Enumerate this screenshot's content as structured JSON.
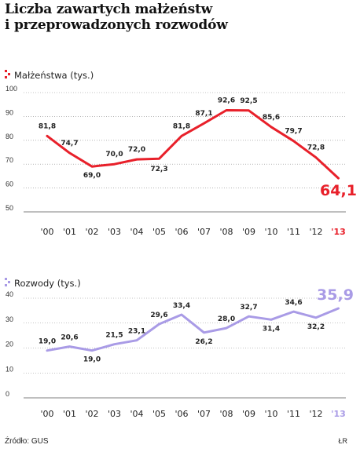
{
  "title_line1": "Liczba zawartych małżeństw",
  "title_line2": "i przeprowadzonych rozwodów",
  "source": "Źródło: GUS",
  "credit": "ŁR",
  "chart_data": [
    {
      "type": "line",
      "ylabel": "Małżeństwa (tys.)",
      "color": "#e8202a",
      "ylim": [
        50,
        100
      ],
      "yticks": [
        50,
        60,
        70,
        80,
        90,
        100
      ],
      "categories": [
        "'00",
        "'01",
        "'02",
        "'03",
        "'04",
        "'05",
        "'06",
        "'07",
        "'08",
        "'09",
        "'10",
        "'11",
        "'12",
        "'13"
      ],
      "values": [
        81.8,
        74.7,
        69.0,
        70.0,
        72.0,
        72.3,
        81.8,
        87.1,
        92.6,
        92.5,
        85.6,
        79.7,
        72.8,
        64.1
      ],
      "labels": [
        "81,8",
        "74,7",
        "69,0",
        "70,0",
        "72,0",
        "72,3",
        "81,8",
        "87,1",
        "92,6",
        "92,5",
        "85,6",
        "79,7",
        "72,8",
        "64,1"
      ],
      "grid": true
    },
    {
      "type": "line",
      "ylabel": "Rozwody (tys.)",
      "color": "#a99be6",
      "ylim": [
        0,
        40
      ],
      "yticks": [
        0,
        10,
        20,
        30,
        40
      ],
      "categories": [
        "'00",
        "'01",
        "'02",
        "'03",
        "'04",
        "'05",
        "'06",
        "'07",
        "'08",
        "'09",
        "'10",
        "'11",
        "'12",
        "'13"
      ],
      "values": [
        19.0,
        20.6,
        19.0,
        21.5,
        23.1,
        29.6,
        33.4,
        26.2,
        28.0,
        32.7,
        31.4,
        34.6,
        32.2,
        35.9
      ],
      "labels": [
        "19,0",
        "20,6",
        "19,0",
        "21,5",
        "23,1",
        "29,6",
        "33,4",
        "26,2",
        "28,0",
        "32,7",
        "31,4",
        "34,6",
        "32,2",
        "35,9"
      ],
      "grid": true
    }
  ]
}
